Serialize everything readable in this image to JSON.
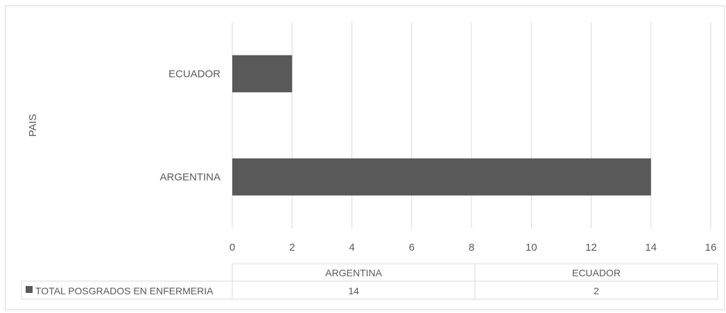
{
  "chart_data": {
    "type": "bar",
    "orientation": "horizontal",
    "categories": [
      "ARGENTINA",
      "ECUADOR"
    ],
    "series": [
      {
        "name": "TOTAL POSGRADOS EN ENFERMERIA",
        "values": [
          14,
          2
        ]
      }
    ],
    "xlim": [
      0,
      16
    ],
    "x_ticks": [
      "0",
      "2",
      "4",
      "6",
      "8",
      "10",
      "12",
      "14",
      "16"
    ],
    "ylabel": "PAIS",
    "grid": "vertical",
    "bar_color": "#595959",
    "data_table": true
  }
}
